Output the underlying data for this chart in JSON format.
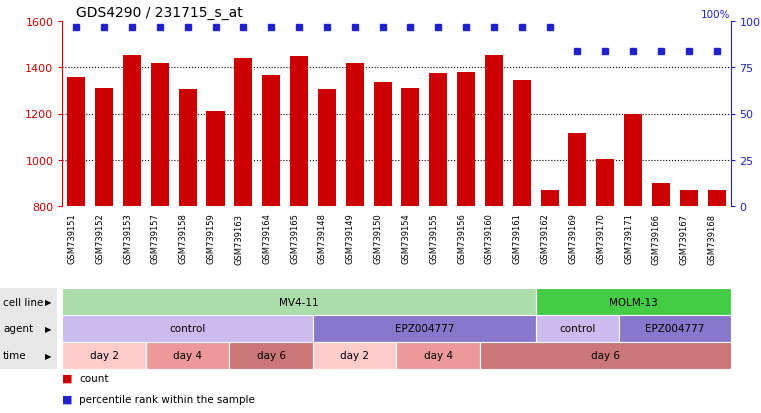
{
  "title": "GDS4290 / 231715_s_at",
  "samples": [
    "GSM739151",
    "GSM739152",
    "GSM739153",
    "GSM739157",
    "GSM739158",
    "GSM739159",
    "GSM739163",
    "GSM739164",
    "GSM739165",
    "GSM739148",
    "GSM739149",
    "GSM739150",
    "GSM739154",
    "GSM739155",
    "GSM739156",
    "GSM739160",
    "GSM739161",
    "GSM739162",
    "GSM739169",
    "GSM739170",
    "GSM739171",
    "GSM739166",
    "GSM739167",
    "GSM739168"
  ],
  "counts": [
    1360,
    1310,
    1455,
    1420,
    1305,
    1210,
    1440,
    1365,
    1450,
    1305,
    1420,
    1335,
    1310,
    1375,
    1380,
    1455,
    1345,
    870,
    1115,
    1005,
    1200,
    900,
    870,
    870
  ],
  "percentile": [
    97,
    97,
    97,
    97,
    97,
    97,
    97,
    97,
    97,
    97,
    97,
    97,
    97,
    97,
    97,
    97,
    97,
    97,
    84,
    84,
    84,
    84,
    84,
    84
  ],
  "bar_color": "#cc0000",
  "dot_color": "#2222cc",
  "ylim_left": [
    800,
    1600
  ],
  "ylim_right": [
    0,
    100
  ],
  "yticks_left": [
    800,
    1000,
    1200,
    1400,
    1600
  ],
  "yticks_right": [
    0,
    25,
    50,
    75,
    100
  ],
  "cell_line_groups": [
    {
      "label": "MV4-11",
      "start": 0,
      "end": 17,
      "color": "#aaddaa"
    },
    {
      "label": "MOLM-13",
      "start": 17,
      "end": 24,
      "color": "#44cc44"
    }
  ],
  "agent_groups": [
    {
      "label": "control",
      "start": 0,
      "end": 9,
      "color": "#ccbbee"
    },
    {
      "label": "EPZ004777",
      "start": 9,
      "end": 17,
      "color": "#8877cc"
    },
    {
      "label": "control",
      "start": 17,
      "end": 20,
      "color": "#ccbbee"
    },
    {
      "label": "EPZ004777",
      "start": 20,
      "end": 24,
      "color": "#8877cc"
    }
  ],
  "time_groups": [
    {
      "label": "day 2",
      "start": 0,
      "end": 3,
      "color": "#ffcccc"
    },
    {
      "label": "day 4",
      "start": 3,
      "end": 6,
      "color": "#ee9999"
    },
    {
      "label": "day 6",
      "start": 6,
      "end": 9,
      "color": "#cc7777"
    },
    {
      "label": "day 2",
      "start": 9,
      "end": 12,
      "color": "#ffcccc"
    },
    {
      "label": "day 4",
      "start": 12,
      "end": 15,
      "color": "#ee9999"
    },
    {
      "label": "day 6",
      "start": 15,
      "end": 24,
      "color": "#cc7777"
    }
  ]
}
